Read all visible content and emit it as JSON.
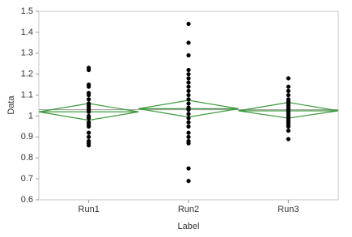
{
  "chart_data": {
    "type": "oneway",
    "x_label": "Label",
    "y_label": "Data",
    "categories": [
      "Run1",
      "Run2",
      "Run3"
    ],
    "groups": [
      {
        "values": [
          1.23,
          1.22,
          1.15,
          1.14,
          1.11,
          1.1,
          1.08,
          1.06,
          1.05,
          1.04,
          1.03,
          1.02,
          1.0,
          0.99,
          0.97,
          0.96,
          0.95,
          0.92,
          0.9,
          0.88,
          0.87,
          0.86
        ],
        "mean": 1.02,
        "ci_lower": 0.98,
        "ci_upper": 1.06
      },
      {
        "values": [
          1.44,
          1.35,
          1.29,
          1.22,
          1.2,
          1.18,
          1.16,
          1.14,
          1.12,
          1.1,
          1.08,
          1.06,
          1.04,
          1.03,
          1.01,
          0.99,
          0.97,
          0.95,
          0.92,
          0.9,
          0.88,
          0.87,
          0.75,
          0.69
        ],
        "mean": 1.035,
        "ci_lower": 0.995,
        "ci_upper": 1.075
      },
      {
        "values": [
          1.18,
          1.14,
          1.12,
          1.1,
          1.08,
          1.07,
          1.06,
          1.05,
          1.04,
          1.03,
          1.02,
          1.01,
          1.0,
          0.99,
          0.98,
          0.97,
          0.96,
          0.95,
          0.93,
          0.89
        ],
        "mean": 1.025,
        "ci_lower": 0.99,
        "ci_upper": 1.065
      }
    ],
    "grand_mean": 1.03,
    "point_color": "#000000",
    "diamond_color": "#3c9a3c",
    "ylim": [
      0.6,
      1.5
    ],
    "yticks": [
      0.6,
      0.7,
      0.8,
      0.9,
      1,
      1.1,
      1.2,
      1.3,
      1.4,
      1.5
    ]
  }
}
